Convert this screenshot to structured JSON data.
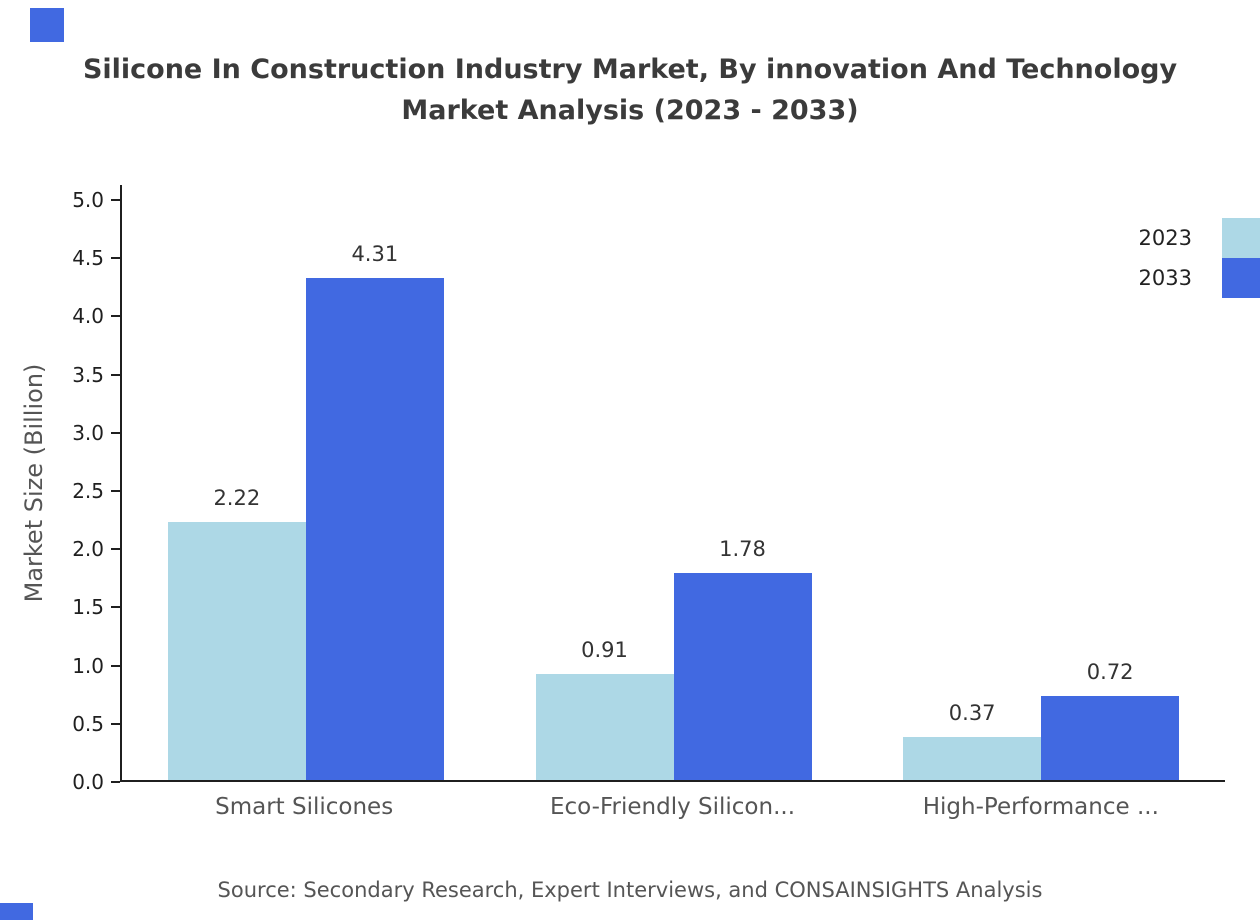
{
  "title": {
    "line1": "Silicone In Construction Industry Market, By innovation And Technology",
    "line2": "Market Analysis (2023 - 2033)"
  },
  "chart_data": {
    "type": "bar",
    "title": "Silicone In Construction Industry Market, By innovation And Technology Market Analysis (2023 - 2033)",
    "categories": [
      "Smart Silicones",
      "Eco-Friendly Silicon...",
      "High-Performance ..."
    ],
    "series": [
      {
        "name": "2023",
        "color": "#add8e6",
        "values": [
          2.22,
          0.91,
          0.37
        ]
      },
      {
        "name": "2033",
        "color": "#4169e1",
        "values": [
          4.31,
          1.78,
          0.72
        ]
      }
    ],
    "xlabel": "",
    "ylabel": "Market Size (Billion)",
    "ylim": [
      0,
      5
    ],
    "ytick_step": 0.5,
    "grid": false,
    "legend_position": "top-right"
  },
  "legend": [
    {
      "label": "2023",
      "color": "#add8e6"
    },
    {
      "label": "2033",
      "color": "#4169e1"
    }
  ],
  "source": "Source: Secondary Research, Expert Interviews, and CONSAINSIGHTS Analysis",
  "colors": {
    "accent": "#4169e1",
    "axis": "#1f1f1f"
  }
}
